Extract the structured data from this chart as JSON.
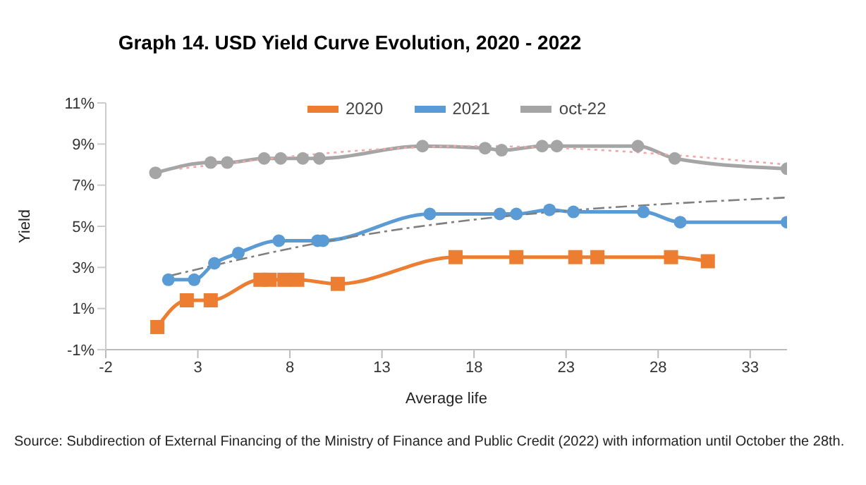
{
  "chart_data": {
    "type": "line",
    "title": "Graph 14. USD Yield Curve Evolution, 2020 - 2022",
    "xlabel": "Average life",
    "ylabel": "Yield",
    "xlim": [
      -2,
      35
    ],
    "xticks": [
      -2,
      3,
      8,
      13,
      18,
      23,
      28,
      33
    ],
    "ylim": [
      -1,
      11
    ],
    "yticks": [
      {
        "value": -1,
        "label": "-1%"
      },
      {
        "value": 1,
        "label": "1%"
      },
      {
        "value": 3,
        "label": "3%"
      },
      {
        "value": 5,
        "label": "5%"
      },
      {
        "value": 7,
        "label": "7%"
      },
      {
        "value": 9,
        "label": "9%"
      },
      {
        "value": 11,
        "label": "11%"
      }
    ],
    "grid": false,
    "legend": "top",
    "line_style": "solid",
    "series": [
      {
        "name": "2020",
        "color": "#ed7d31",
        "marker": "square",
        "x": [
          0.8,
          2.4,
          3.7,
          6.4,
          6.9,
          7.7,
          8.4,
          10.6,
          17,
          20.3,
          23.5,
          24.7,
          28.7,
          30.7
        ],
        "values": [
          0.1,
          1.4,
          1.4,
          2.4,
          2.4,
          2.4,
          2.4,
          2.2,
          3.5,
          3.5,
          3.5,
          3.5,
          3.5,
          3.3
        ]
      },
      {
        "name": "2021",
        "color": "#5b9bd5",
        "marker": "circle",
        "x": [
          1.4,
          2.8,
          3.9,
          5.2,
          7.4,
          9.5,
          9.8,
          15.6,
          19.4,
          20.3,
          22.1,
          23.4,
          27.2,
          29.2,
          35
        ],
        "values": [
          2.4,
          2.4,
          3.2,
          3.7,
          4.3,
          4.3,
          4.3,
          5.6,
          5.6,
          5.6,
          5.8,
          5.7,
          5.7,
          5.2,
          5.2
        ]
      },
      {
        "name": "oct-22",
        "color": "#a5a5a5",
        "marker": "circle",
        "x": [
          0.7,
          3.7,
          4.6,
          6.6,
          7.5,
          8.7,
          9.6,
          15.2,
          18.6,
          19.5,
          21.7,
          22.5,
          26.9,
          28.9,
          35
        ],
        "values": [
          7.6,
          8.1,
          8.1,
          8.3,
          8.3,
          8.3,
          8.3,
          8.9,
          8.8,
          8.7,
          8.9,
          8.9,
          8.9,
          8.3,
          7.8
        ]
      },
      {
        "color": "#7f7f7f",
        "marker": "none",
        "line_style": "dashed",
        "x": [
          1.5,
          9.6,
          35
        ],
        "values": [
          2.6,
          4.2,
          6.4
        ]
      },
      {
        "color": "#f4a6a6",
        "marker": "none",
        "line_style": "dotted",
        "x": [
          2,
          18,
          35
        ],
        "values": [
          7.8,
          8.9,
          8.0
        ]
      }
    ],
    "annotations": [
      "Source: Subdirection of External Financing of the Ministry of Finance and Public Credit (2022) with information until October the 28th."
    ]
  }
}
